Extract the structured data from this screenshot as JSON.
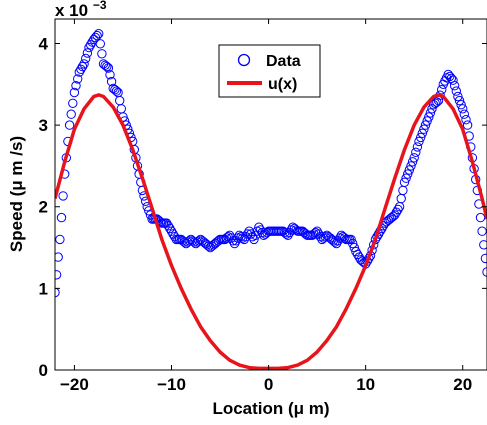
{
  "chart_data": {
    "type": "scatter",
    "xlabel": "Location (μ m)",
    "ylabel": "Speed (μ m /s)",
    "scale_text": "x 10",
    "scale_exp": "−3",
    "xlim": [
      -22,
      22.5
    ],
    "ylim": [
      0,
      4.3
    ],
    "x_ticks": [
      -20,
      -10,
      0,
      10,
      20
    ],
    "x_tick_labels": [
      "−20",
      "−10",
      "0",
      "10",
      "20"
    ],
    "y_ticks": [
      0,
      1,
      2,
      3,
      4
    ],
    "y_tick_labels": [
      "0",
      "1",
      "2",
      "3",
      "4"
    ],
    "grid": false,
    "legend_position": "top-center",
    "colors": {
      "data": "#0000ff",
      "model": "#e8141c"
    },
    "series": [
      {
        "name": "Data",
        "marker": "circle",
        "x": [
          -22.0,
          -21.5,
          -21.0,
          -20.5,
          -20.0,
          -19.5,
          -19.0,
          -18.5,
          -18.0,
          -17.5,
          -17.0,
          -16.5,
          -16.0,
          -15.5,
          -15.0,
          -14.5,
          -14.0,
          -13.5,
          -13.0,
          -12.5,
          -12.0,
          -11.5,
          -11.0,
          -10.5,
          -10.0,
          -9.5,
          -9.0,
          -8.5,
          -8.0,
          -7.5,
          -7.0,
          -6.5,
          -6.0,
          -5.5,
          -5.0,
          -4.5,
          -4.0,
          -3.5,
          -3.0,
          -2.5,
          -2.0,
          -1.5,
          -1.0,
          -0.5,
          0.0,
          0.5,
          1.0,
          1.5,
          2.0,
          2.5,
          3.0,
          3.5,
          4.0,
          4.5,
          5.0,
          5.5,
          6.0,
          6.5,
          7.0,
          7.5,
          8.0,
          8.5,
          9.0,
          9.5,
          10.0,
          10.5,
          11.0,
          11.5,
          12.0,
          12.5,
          13.0,
          13.5,
          14.0,
          14.5,
          15.0,
          15.5,
          16.0,
          16.5,
          17.0,
          17.5,
          18.0,
          18.5,
          19.0,
          19.5,
          20.0,
          20.5,
          21.0,
          21.5,
          22.0,
          22.5
        ],
        "y": [
          0.95,
          1.6,
          2.4,
          3.0,
          3.4,
          3.65,
          3.75,
          3.95,
          4.05,
          4.12,
          3.75,
          3.7,
          3.45,
          3.4,
          3.1,
          2.95,
          2.8,
          2.5,
          2.2,
          2.0,
          1.85,
          1.85,
          1.8,
          1.8,
          1.7,
          1.6,
          1.6,
          1.55,
          1.6,
          1.55,
          1.6,
          1.55,
          1.5,
          1.55,
          1.6,
          1.6,
          1.65,
          1.55,
          1.65,
          1.6,
          1.7,
          1.6,
          1.75,
          1.65,
          1.7,
          1.7,
          1.7,
          1.7,
          1.65,
          1.75,
          1.7,
          1.7,
          1.65,
          1.65,
          1.7,
          1.6,
          1.65,
          1.6,
          1.55,
          1.65,
          1.6,
          1.6,
          1.45,
          1.35,
          1.3,
          1.4,
          1.6,
          1.7,
          1.8,
          1.85,
          1.9,
          2.0,
          2.3,
          2.45,
          2.6,
          2.8,
          2.95,
          3.1,
          3.25,
          3.3,
          3.5,
          3.62,
          3.55,
          3.35,
          3.2,
          3.0,
          2.6,
          2.2,
          1.7,
          1.2
        ]
      },
      {
        "name": "u(x)",
        "line": "solid",
        "x": [
          -22.0,
          -21.0,
          -20.0,
          -19.0,
          -18.0,
          -17.5,
          -17.0,
          -16.0,
          -15.0,
          -14.0,
          -13.0,
          -12.0,
          -11.0,
          -10.0,
          -9.0,
          -8.0,
          -7.0,
          -6.0,
          -5.0,
          -4.0,
          -3.0,
          -2.0,
          -1.0,
          0.0,
          1.0,
          2.0,
          3.0,
          4.0,
          5.0,
          6.0,
          7.0,
          8.0,
          9.0,
          10.0,
          11.0,
          12.0,
          13.0,
          14.0,
          15.0,
          16.0,
          17.0,
          17.5,
          18.0,
          19.0,
          20.0,
          21.0,
          22.0,
          22.5
        ],
        "y": [
          2.1,
          2.55,
          2.95,
          3.2,
          3.35,
          3.37,
          3.35,
          3.22,
          3.0,
          2.7,
          2.35,
          1.98,
          1.6,
          1.28,
          1.0,
          0.75,
          0.53,
          0.36,
          0.22,
          0.12,
          0.06,
          0.03,
          0.02,
          0.02,
          0.02,
          0.03,
          0.06,
          0.12,
          0.22,
          0.36,
          0.53,
          0.75,
          1.0,
          1.28,
          1.6,
          1.98,
          2.35,
          2.7,
          3.0,
          3.22,
          3.35,
          3.37,
          3.35,
          3.2,
          2.95,
          2.55,
          2.1,
          1.85
        ]
      }
    ]
  }
}
